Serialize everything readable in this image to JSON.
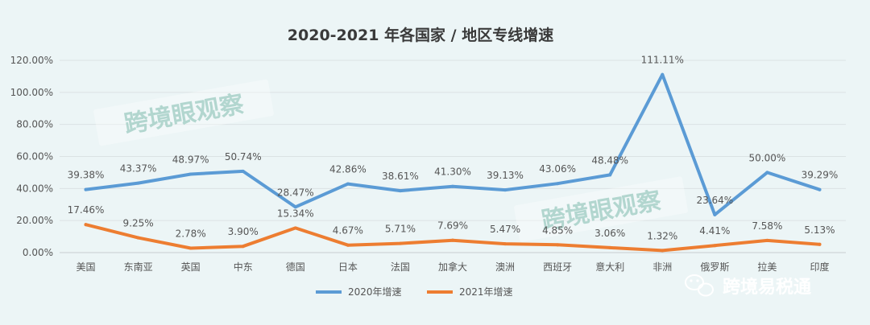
{
  "chart_data": {
    "type": "line",
    "title": "2020-2021 年各国家 / 地区专线增速",
    "categories": [
      "美国",
      "东南亚",
      "英国",
      "中东",
      "德国",
      "日本",
      "法国",
      "加拿大",
      "澳洲",
      "西班牙",
      "意大利",
      "非洲",
      "俄罗斯",
      "拉美",
      "印度"
    ],
    "series": [
      {
        "name": "2020年增速",
        "color": "#5b9bd5",
        "values": [
          39.38,
          43.37,
          48.97,
          50.74,
          28.47,
          42.86,
          38.61,
          41.3,
          39.13,
          43.06,
          48.48,
          111.11,
          23.64,
          50.0,
          39.29
        ],
        "labels": [
          "39.38%",
          "43.37%",
          "48.97%",
          "50.74%",
          "28.47%",
          "42.86%",
          "38.61%",
          "41.30%",
          "39.13%",
          "43.06%",
          "48.48%",
          "111.11%",
          "23.64%",
          "50.00%",
          "39.29%"
        ]
      },
      {
        "name": "2021年增速",
        "color": "#ed7d31",
        "values": [
          17.46,
          9.25,
          2.78,
          3.9,
          15.34,
          4.67,
          5.71,
          7.69,
          5.47,
          4.85,
          3.06,
          1.32,
          4.41,
          7.58,
          5.13
        ],
        "labels": [
          "17.46%",
          "9.25%",
          "2.78%",
          "3.90%",
          "15.34%",
          "4.67%",
          "5.71%",
          "7.69%",
          "5.47%",
          "4.85%",
          "3.06%",
          "1.32%",
          "4.41%",
          "7.58%",
          "5.13%"
        ]
      }
    ],
    "ylim": [
      0,
      120
    ],
    "yticks": [
      "0.00%",
      "20.00%",
      "40.00%",
      "60.00%",
      "80.00%",
      "100.00%",
      "120.00%"
    ],
    "grid": true,
    "legend": "bottom"
  },
  "watermark": {
    "text": "跨境眼观察"
  },
  "brand": {
    "text": "跨境易税通",
    "icon": "wechat-icon"
  }
}
